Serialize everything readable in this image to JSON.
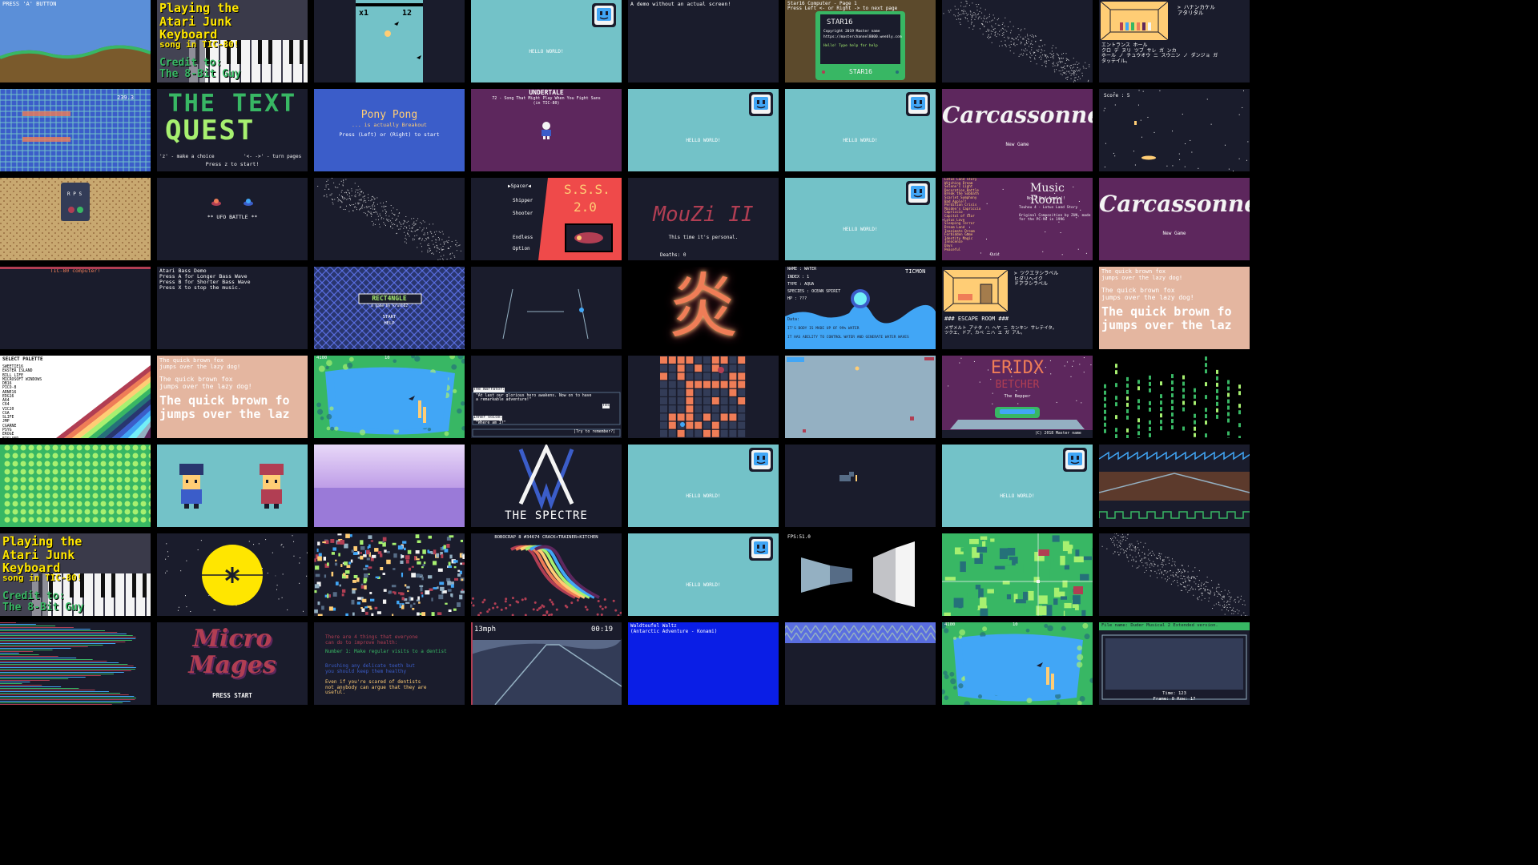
{
  "cartridges": [
    {
      "id": "r0c0",
      "theme": "landscape",
      "bg": "#5b8fd8",
      "texts": [
        "PRESS 'A' BUTTON"
      ],
      "fg": "#ffffff"
    },
    {
      "id": "r0c1",
      "theme": "video",
      "bg": "#3a3a4a",
      "texts": [
        "Playing the\nAtari Junk\nKeyboard",
        "song in TIC-80!",
        "Credit to:\nThe 8-Bit Guy"
      ],
      "fg": "#ffe600"
    },
    {
      "id": "r0c2",
      "theme": "flappy",
      "bg": "#1a1c2c",
      "texts": [
        "x1",
        "12"
      ],
      "fg": "#000000"
    },
    {
      "id": "r0c3",
      "theme": "hello",
      "bg": "#73c2c8",
      "texts": [
        "HELLO WORLD!"
      ],
      "fg": "#ffffff"
    },
    {
      "id": "r0c4",
      "theme": "dark",
      "bg": "#1a1c2c",
      "texts": [
        "A demo without an actual screen!"
      ],
      "fg": "#ffffff"
    },
    {
      "id": "r0c5",
      "theme": "computer",
      "bg": "#5c4a2c",
      "texts": [
        "Star16 Computer - Page 1",
        "Press Left <- or Right -> to next page",
        "STAR16",
        "Copyright 2019 Master name",
        "https://masterchannel8000.weebly.com",
        "Hello! Type help for help",
        "STAR16"
      ],
      "fg": "#ffffff"
    },
    {
      "id": "r0c6",
      "theme": "dots",
      "bg": "#1a1c2c",
      "texts": [],
      "fg": "#ffffff"
    },
    {
      "id": "r0c7",
      "theme": "room-jp",
      "bg": "#1a1c2c",
      "texts": [
        "> ハナンカケル\n  アタリタル",
        "エントランス ホール\nクロ デ ヌリ ツブ サレ ガ ンカ\nホール ノ チュウオウ ニ スウニン ノ ダンジョ ガ\nタッテイル。"
      ],
      "fg": "#ffffff"
    },
    {
      "id": "r1c0",
      "theme": "tetris",
      "bg": "#3b5dc9",
      "texts": [
        "239.3"
      ],
      "fg": "#ffffff"
    },
    {
      "id": "r1c1",
      "theme": "textquest",
      "bg": "#1a1c2c",
      "texts": [
        "THE TEXT",
        "QUEST",
        "'z' - make a choice",
        "'<- ->' - turn pages",
        "Press z to start!"
      ],
      "fg": "#38b764"
    },
    {
      "id": "r1c2",
      "theme": "pong",
      "bg": "#3b5dc9",
      "texts": [
        "Pony Pong",
        "... is actually Breakout",
        "Press (Left) or (Right) to start"
      ],
      "fg": "#ffffff"
    },
    {
      "id": "r1c3",
      "theme": "undertale",
      "bg": "#5d275d",
      "texts": [
        "UNDERTALE",
        "72 - Song That Might Play When You Fight Sans\n(in TIC-80)"
      ],
      "fg": "#ffffff"
    },
    {
      "id": "r1c4",
      "theme": "hello",
      "bg": "#73c2c8",
      "texts": [
        "HELLO WORLD!"
      ],
      "fg": "#ffffff"
    },
    {
      "id": "r1c5",
      "theme": "hello",
      "bg": "#73c2c8",
      "texts": [
        "HELLO WORLD!"
      ],
      "fg": "#ffffff"
    },
    {
      "id": "r1c6",
      "theme": "carcassonne",
      "bg": "#5d275d",
      "texts": [
        "Carcassonne",
        "New Game"
      ],
      "fg": "#f4f4f4"
    },
    {
      "id": "r1c7",
      "theme": "space",
      "bg": "#1a1c2c",
      "texts": [
        "Score : 5"
      ],
      "fg": "#ffffff"
    },
    {
      "id": "r2c0",
      "theme": "rps",
      "bg": "#c8a870",
      "texts": [
        "R P S"
      ],
      "fg": "#ffffff"
    },
    {
      "id": "r2c1",
      "theme": "ufo",
      "bg": "#1a1c2c",
      "texts": [
        "** UFO BATTLE **"
      ],
      "fg": "#ffffff"
    },
    {
      "id": "r2c2",
      "theme": "dots",
      "bg": "#1a1c2c",
      "texts": [],
      "fg": "#ffffff"
    },
    {
      "id": "r2c3",
      "theme": "sss",
      "bg": "#1a1c2c",
      "texts": [
        "Spacer",
        "Shipper",
        "Shooter",
        "Endless",
        "Option",
        "S.S.S.",
        "2.0"
      ],
      "fg": "#ffffff"
    },
    {
      "id": "r2c4",
      "theme": "mouzi",
      "bg": "#1a1c2c",
      "texts": [
        "MouZi II",
        "This time it's personal.",
        "Deaths: 0"
      ],
      "fg": "#b13e53"
    },
    {
      "id": "r2c5",
      "theme": "hello",
      "bg": "#73c2c8",
      "texts": [
        "HELLO WORLD!"
      ],
      "fg": "#ffffff"
    },
    {
      "id": "r2c6",
      "theme": "musicroom",
      "bg": "#5d275d",
      "texts": [
        "Music Room",
        "No.7  Bad Apple!!",
        "Touhou 4 - Lotus Land Story",
        "Original Composition by ZUN, made for the PC-98 in 1996",
        "Lotus Land Story\nWitching Dream\nSelene's Light\nDecoration Battle\nBreak the Sabbath\nScarlet Symphony\nBad Apple!!\nPerdition Crisis\nMaiden's Capriccio\nCapriccio\nCapital of Star\nLotus Love\nSleeping Terror\nDream Land\nInanimate Dream\nForbidden Game\nIdentity Magic\nInnocence\nDays\nPeaceful",
        "Quit"
      ],
      "fg": "#ffcd75"
    },
    {
      "id": "r2c7",
      "theme": "carcassonne",
      "bg": "#5d275d",
      "texts": [
        "Carcassonne",
        "New Game"
      ],
      "fg": "#f4f4f4"
    },
    {
      "id": "r3c0",
      "theme": "dark",
      "bg": "#1a1c2c",
      "texts": [
        "TIC-80 computer!"
      ],
      "fg": "#ffffff"
    },
    {
      "id": "r3c1",
      "theme": "dark",
      "bg": "#1a1c2c",
      "texts": [
        "Atari Bass Demo\nPress A for Longer Bass Wave\nPress B for Shorter Bass Wave\nPress X to stop the music."
      ],
      "fg": "#ffffff"
    },
    {
      "id": "r3c2",
      "theme": "diamond",
      "bg": "#29366f",
      "texts": [
        "RECT4NGLE",
        "a game by krush62",
        "START",
        "HELP"
      ],
      "fg": "#ffffff"
    },
    {
      "id": "r3c3",
      "theme": "lines",
      "bg": "#1a1c2c",
      "texts": [],
      "fg": "#ffffff"
    },
    {
      "id": "r3c4",
      "theme": "fire",
      "bg": "#000000",
      "texts": [
        "炎"
      ],
      "fg": "#ef7d57"
    },
    {
      "id": "r3c5",
      "theme": "ticmon",
      "bg": "#41a6f6",
      "texts": [
        "NAME : WATER",
        "INDEX : 1",
        "TYPE : AQUA",
        "SPECIES : OCEAN SPIRIT",
        "HP : ???",
        "TICMON",
        "Data:",
        "IT'S BODY IS MADE UP OF 99% WATER",
        "IT HAS ABILITY TO CONTROL WATER AND GENERATE WATER WAVES"
      ],
      "fg": "#ffffff"
    },
    {
      "id": "r3c6",
      "theme": "escape",
      "bg": "#1a1c2c",
      "texts": [
        "> ツクエヲシラベル\n  ヒダリヘイク\n  ドアヲシラベル",
        "### ESCAPE ROOM ###",
        "メザメルト アナタ ハ ヘヤ ニ カンキン サレテイタ。\nツクエ、ドア、カベ ニハ エ ガ アル。"
      ],
      "fg": "#ffffff"
    },
    {
      "id": "r3c7",
      "theme": "fox",
      "bg": "#e4b6a0",
      "texts": [
        "The quick brown fox\njumps over the lazy dog!",
        "The quick brown fox\njumps over the lazy dog!",
        "The quick brown fo\njumps over the laz"
      ],
      "fg": "#ffffff"
    },
    {
      "id": "r4c0",
      "theme": "palette",
      "bg": "#ffffff",
      "texts": [
        "SELECT PALETTE",
        "SWEETIE16\nEASTER ISLAND\nBILL LIFE\nMICROSOFT WINDOWS\nDB16\nPICO-8\nARNE16\nEDG16\nA64\nC64\nVIC20\nCGA\nSLIFE\nJMP\nCGARNE\nPSYG\nEROGE\nEISLAND"
      ],
      "fg": "#000000"
    },
    {
      "id": "r4c1",
      "theme": "fox",
      "bg": "#e4b6a0",
      "texts": [
        "The quick brown fox\njumps over the lazy dog!",
        "The quick brown fox\njumps over the lazy dog!",
        "The quick brown fo\njumps over the laz"
      ],
      "fg": "#ffffff"
    },
    {
      "id": "r4c2",
      "theme": "lake",
      "bg": "#38b764",
      "texts": [
        "4100",
        "10"
      ],
      "fg": "#ffffff"
    },
    {
      "id": "r4c3",
      "theme": "narrator",
      "bg": "#1a1c2c",
      "texts": [
        "The Narrator:",
        "\"At last our glorious hero awakens. Now on to have a remarkable adventure!\"",
        "Yes",
        "Inner Voice:",
        "\"Where am I?\"",
        "[Try to remember?]"
      ],
      "fg": "#ffffff"
    },
    {
      "id": "r4c4",
      "theme": "orangegrid",
      "bg": "#1a1c2c",
      "texts": [],
      "fg": "#ffffff"
    },
    {
      "id": "r4c5",
      "theme": "greyfield",
      "bg": "#94b0c2",
      "texts": [],
      "fg": "#ffffff"
    },
    {
      "id": "r4c6",
      "theme": "betcher",
      "bg": "#5d275d",
      "texts": [
        "ERIDX",
        "BETCHER",
        "The Bepper",
        "(C) 2018 Master name"
      ],
      "fg": "#ef7d57"
    },
    {
      "id": "r4c7",
      "theme": "matrix",
      "bg": "#000000",
      "texts": [],
      "fg": "#38b764"
    },
    {
      "id": "r5c0",
      "theme": "greendots",
      "bg": "#38b764",
      "texts": [],
      "fg": "#a7f070"
    },
    {
      "id": "r5c1",
      "theme": "characters",
      "bg": "#73c2c8",
      "texts": [],
      "fg": "#ffffff"
    },
    {
      "id": "r5c2",
      "theme": "gradient",
      "bg": "#b18ad8",
      "texts": [],
      "fg": "#ffffff"
    },
    {
      "id": "r5c3",
      "theme": "spectre",
      "bg": "#1a1c2c",
      "texts": [
        "THE SPECTRE"
      ],
      "fg": "#ffffff"
    },
    {
      "id": "r5c4",
      "theme": "hello",
      "bg": "#73c2c8",
      "texts": [
        "HELLO WORLD!"
      ],
      "fg": "#ffffff"
    },
    {
      "id": "r5c5",
      "theme": "cat",
      "bg": "#1a1c2c",
      "texts": [],
      "fg": "#ffffff"
    },
    {
      "id": "r5c6",
      "theme": "hello",
      "bg": "#73c2c8",
      "texts": [
        "HELLO WORLD!"
      ],
      "fg": "#ffffff"
    },
    {
      "id": "r5c7",
      "theme": "waves",
      "bg": "#5c3a2c",
      "texts": [],
      "fg": "#ffffff"
    },
    {
      "id": "r6c0",
      "theme": "video",
      "bg": "#3a3a4a",
      "texts": [
        "Playing the\nAtari Junk\nKeyboard",
        "song in TIC-80!",
        "Credit to:\nThe 8-Bit Guy"
      ],
      "fg": "#ffe600"
    },
    {
      "id": "r6c1",
      "theme": "moon",
      "bg": "#1a1c2c",
      "texts": [],
      "fg": "#ffffff"
    },
    {
      "id": "r6c2",
      "theme": "confetti",
      "bg": "#1a1c2c",
      "texts": [],
      "fg": "#ffffff"
    },
    {
      "id": "r6c3",
      "theme": "demo",
      "bg": "#1a1c2c",
      "texts": [
        "BOBOCRAP 8 #34674 CRACK+TRAINER+KITCHEN"
      ],
      "fg": "#ffffff"
    },
    {
      "id": "r6c4",
      "theme": "hello",
      "bg": "#73c2c8",
      "texts": [
        "HELLO WORLD!"
      ],
      "fg": "#ffffff"
    },
    {
      "id": "r6c5",
      "theme": "raycast",
      "bg": "#000000",
      "texts": [
        "FPS:51.0"
      ],
      "fg": "#ffffff"
    },
    {
      "id": "r6c6",
      "theme": "map",
      "bg": "#38b764",
      "texts": [],
      "fg": "#ffffff"
    },
    {
      "id": "r6c7",
      "theme": "dots",
      "bg": "#1a1c2c",
      "texts": [],
      "fg": "#ffffff"
    },
    {
      "id": "r7c0",
      "theme": "stripes",
      "bg": "#1a1c2c",
      "texts": [],
      "fg": "#ffffff"
    },
    {
      "id": "r7c1",
      "theme": "micromages",
      "bg": "#1a1c2c",
      "texts": [
        "Micro\nMages",
        "PRESS START"
      ],
      "fg": "#b13e53"
    },
    {
      "id": "r7c2",
      "theme": "dentist",
      "bg": "#1a1c2c",
      "texts": [
        "There are 4 things that everyone\ncan do to improve health:",
        "Number 1: Make regular visits to a dentist",
        "Brushing any delicate teeth but\nyou should keep them healthy",
        "Even if you're scared of dentists\nnot anybody can argue that they are\nuseful."
      ],
      "fg": "#ffffff"
    },
    {
      "id": "r7c3",
      "theme": "race",
      "bg": "#5a6988",
      "texts": [
        "13mph",
        "00:19"
      ],
      "fg": "#ffffff"
    },
    {
      "id": "r7c4",
      "theme": "blue",
      "bg": "#0a1ee6",
      "texts": [
        "Waldteufel Waltz\n(Antarctic Adventure - Konami)"
      ],
      "fg": "#ffffff"
    },
    {
      "id": "r7c5",
      "theme": "zigzag",
      "bg": "#1a1c2c",
      "texts": [],
      "fg": "#ffffff"
    },
    {
      "id": "r7c6",
      "theme": "lake",
      "bg": "#38b764",
      "texts": [
        "4100",
        "10"
      ],
      "fg": "#ffffff"
    },
    {
      "id": "r7c7",
      "theme": "tracker",
      "bg": "#1a1c2c",
      "texts": [
        "File name: Duder Musical 2 Extended version.",
        "Time: 123",
        "Frame: 0     Row: 17"
      ],
      "fg": "#ffffff"
    }
  ]
}
